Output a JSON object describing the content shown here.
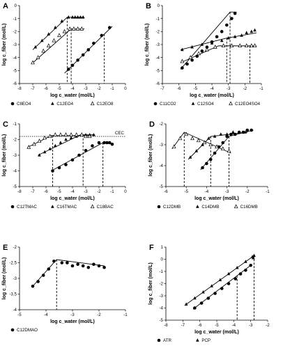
{
  "chart_data": [
    {
      "panel": "A",
      "type": "scatter",
      "xlabel": "log c_water (mol/L)",
      "ylabel": "log c_fiber (mol/L)",
      "xlim": [
        -8,
        0
      ],
      "ylim": [
        -6,
        0
      ],
      "xticks": [
        "-8",
        "-7",
        "-6",
        "-5",
        "-4",
        "-3",
        "-2",
        "-1",
        "0"
      ],
      "yticks": [
        "-6",
        "-5",
        "-4",
        "-3",
        "-2",
        "-1",
        "0"
      ],
      "series": [
        {
          "name": "C8EO4",
          "marker": "circle-filled",
          "x": [
            -4.3,
            -4.0,
            -3.6,
            -3.2,
            -2.8,
            -2.4,
            -1.8,
            -1.2
          ],
          "y": [
            -4.9,
            -4.6,
            -4.2,
            -3.8,
            -3.4,
            -2.9,
            -2.3,
            -1.7
          ],
          "fit_x": [
            -4.6,
            -1.0
          ],
          "fit_y": [
            -5.2,
            -1.6
          ],
          "vline": -1.6
        },
        {
          "name": "C12EO4",
          "marker": "triangle-filled",
          "x": [
            -6.8,
            -6.3,
            -5.8,
            -5.3,
            -4.8,
            -4.3,
            -4.0,
            -3.8,
            -3.6,
            -3.4,
            -3.2
          ],
          "y": [
            -3.2,
            -2.7,
            -2.2,
            -1.7,
            -1.2,
            -0.9,
            -0.9,
            -0.9,
            -0.9,
            -0.9,
            -0.9
          ],
          "fit_x": [
            -7.0,
            -4.4,
            -3.1
          ],
          "fit_y": [
            -3.4,
            -0.9,
            -0.9
          ],
          "vline": -4.4
        },
        {
          "name": "C12EO8",
          "marker": "triangle-open",
          "x": [
            -7.0,
            -6.6,
            -6.2,
            -5.8,
            -5.4,
            -5.0,
            -4.6,
            -4.2,
            -3.9,
            -3.6,
            -3.3
          ],
          "y": [
            -4.4,
            -4.0,
            -3.5,
            -3.1,
            -2.7,
            -2.3,
            -2.0,
            -1.8,
            -1.8,
            -1.8,
            -1.8
          ],
          "fit_x": [
            -7.1,
            -4.1,
            -3.1
          ],
          "fit_y": [
            -4.5,
            -1.8,
            -1.8
          ],
          "vline": -4.1
        }
      ],
      "legend": [
        "C8EO4",
        "C12EO4",
        "C12EO8"
      ]
    },
    {
      "panel": "B",
      "type": "scatter",
      "xlabel": "log c_water (mol/L)",
      "ylabel": "log c_fiber (mol/L)",
      "xlim": [
        -7,
        -1
      ],
      "ylim": [
        -6,
        0
      ],
      "xticks": [
        "-7",
        "-6",
        "-5",
        "-4",
        "-3",
        "-2",
        "-1"
      ],
      "yticks": [
        "-6",
        "-5",
        "-4",
        "-3",
        "-2",
        "-1",
        "0"
      ],
      "series": [
        {
          "name": "C11CO2",
          "marker": "circle-filled",
          "x": [
            -5.8,
            -5.5,
            -5.2,
            -4.9,
            -4.6,
            -4.3,
            -4.0,
            -3.7,
            -3.4,
            -3.1,
            -2.8,
            -2.6
          ],
          "y": [
            -4.8,
            -4.5,
            -4.2,
            -3.9,
            -3.5,
            -3.2,
            -2.8,
            -2.4,
            -2.0,
            -1.5,
            -1.0,
            -0.6
          ],
          "fit_x": [
            -5.9,
            -2.9,
            -2.5
          ],
          "fit_y": [
            -4.9,
            -0.5,
            -0.5
          ],
          "vline": -2.9
        },
        {
          "name": "C12SO4",
          "marker": "triangle-filled",
          "x": [
            -5.8,
            -5.2,
            -4.6,
            -4.0,
            -3.4,
            -3.0,
            -2.6,
            -2.2,
            -1.9,
            -1.6,
            -1.4
          ],
          "y": [
            -3.4,
            -3.2,
            -3.0,
            -2.9,
            -2.7,
            -2.5,
            -2.4,
            -2.3,
            -2.1,
            -2.0,
            -1.9
          ],
          "fit_x": [
            -5.9,
            -3.1,
            -1.3
          ],
          "fit_y": [
            -3.4,
            -2.5,
            -2.1
          ],
          "vline": -3.1
        },
        {
          "name": "C12EO4SO4",
          "marker": "triangle-open",
          "x": [
            -5.8,
            -5.3,
            -4.8,
            -4.3,
            -3.8,
            -3.3,
            -2.8,
            -2.3,
            -1.9,
            -1.6,
            -1.4
          ],
          "y": [
            -4.3,
            -4.0,
            -3.7,
            -3.4,
            -3.2,
            -3.1,
            -3.1,
            -3.1,
            -3.1,
            -3.1,
            -3.1
          ],
          "fit_x": [
            -5.9,
            -3.6,
            -1.3
          ],
          "fit_y": [
            -4.4,
            -3.1,
            -3.1
          ],
          "vline": -1.7
        }
      ],
      "legend": [
        "C11CO2",
        "C12SO4",
        "C12EO4SO4"
      ]
    },
    {
      "panel": "C",
      "type": "scatter",
      "xlabel": "log c_water (mol/L)",
      "ylabel": "log c_fiber (mol/L)",
      "xlim": [
        -8,
        0
      ],
      "ylim": [
        -5,
        -1
      ],
      "xticks": [
        "-8",
        "-7",
        "-6",
        "-5",
        "-4",
        "-3",
        "-2",
        "-1",
        "0"
      ],
      "yticks": [
        "-5",
        "-4",
        "-3",
        "-2",
        "-1"
      ],
      "annotation": "CEC",
      "cec": -1.8,
      "series": [
        {
          "name": "C12TMAC",
          "marker": "circle-filled",
          "x": [
            -5.5,
            -5.0,
            -4.5,
            -4.0,
            -3.5,
            -3.0,
            -2.5,
            -2.0,
            -1.6,
            -1.4,
            -1.2,
            -1.0
          ],
          "y": [
            -4.0,
            -3.8,
            -3.6,
            -3.3,
            -3.0,
            -2.7,
            -2.4,
            -2.2,
            -2.2,
            -2.2,
            -2.2,
            -2.3
          ],
          "fit_x": [
            -5.6,
            -1.7,
            -0.9
          ],
          "fit_y": [
            -4.0,
            -2.2,
            -2.3
          ],
          "vline": -1.7
        },
        {
          "name": "C16TMAC",
          "marker": "triangle-filled",
          "x": [
            -6.5,
            -6.1,
            -5.7,
            -5.3,
            -4.9,
            -4.5,
            -4.1,
            -3.7,
            -3.3,
            -3.0,
            -2.7,
            -2.4
          ],
          "y": [
            -3.0,
            -2.8,
            -2.6,
            -2.4,
            -2.2,
            -2.0,
            -1.9,
            -1.8,
            -1.7,
            -1.7,
            -1.7,
            -1.7
          ],
          "fit_x": [
            -6.6,
            -3.4,
            -2.3
          ],
          "fit_y": [
            -3.0,
            -1.7,
            -1.7
          ],
          "vline": -3.2
        },
        {
          "name": "C18BAC",
          "marker": "triangle-open",
          "x": [
            -7.3,
            -6.9,
            -6.5,
            -6.1,
            -5.7,
            -5.3,
            -4.9,
            -4.5,
            -4.1,
            -3.7,
            -3.3,
            -3.0,
            -2.7
          ],
          "y": [
            -2.5,
            -2.3,
            -2.1,
            -1.9,
            -1.8,
            -1.7,
            -1.7,
            -1.7,
            -1.7,
            -1.7,
            -1.7,
            -1.8,
            -1.8
          ],
          "fit_x": [
            -7.4,
            -5.6,
            -2.6
          ],
          "fit_y": [
            -2.5,
            -1.75,
            -1.75
          ],
          "vline": -5.5
        }
      ],
      "legend": [
        "C12TMAC",
        "C16TMAC",
        "C18BAC"
      ]
    },
    {
      "panel": "D",
      "type": "scatter",
      "xlabel": "log c_water (mol/L)",
      "ylabel": "log c_fiber (mol/L)",
      "xlim": [
        -6,
        -1
      ],
      "ylim": [
        -5,
        -2
      ],
      "xticks": [
        "-6",
        "-5",
        "-4",
        "-3",
        "-2",
        "-1"
      ],
      "yticks": [
        "-5",
        "-4",
        "-3",
        "-2"
      ],
      "series": [
        {
          "name": "C12DMB",
          "marker": "circle-filled",
          "x": [
            -4.2,
            -4.0,
            -3.8,
            -3.6,
            -3.4,
            -3.2,
            -3.0,
            -2.8,
            -2.6,
            -2.4,
            -2.2,
            -2.0,
            -1.8
          ],
          "y": [
            -4.1,
            -3.9,
            -3.7,
            -3.4,
            -3.1,
            -2.9,
            -2.6,
            -2.5,
            -2.5,
            -2.4,
            -2.4,
            -2.3,
            -2.3
          ],
          "fit_x": [
            -4.3,
            -2.9,
            -1.7
          ],
          "fit_y": [
            -4.2,
            -2.6,
            -2.3
          ],
          "vline": -2.9
        },
        {
          "name": "C14DMB",
          "marker": "triangle-filled",
          "x": [
            -4.8,
            -4.5,
            -4.2,
            -3.9,
            -3.6,
            -3.3,
            -3.0,
            -2.7,
            -2.4,
            -2.1
          ],
          "y": [
            -3.6,
            -3.3,
            -3.0,
            -2.7,
            -2.6,
            -2.5,
            -2.5,
            -2.4,
            -2.4,
            -2.4
          ],
          "fit_x": [
            -4.9,
            -3.8,
            -2.0
          ],
          "fit_y": [
            -3.7,
            -2.6,
            -2.4
          ],
          "vline": -3.8
        },
        {
          "name": "C16DMB",
          "marker": "triangle-open",
          "x": [
            -5.6,
            -5.3,
            -5.0,
            -4.7,
            -4.4,
            -4.1,
            -3.8,
            -3.5,
            -3.2,
            -2.9
          ],
          "y": [
            -3.1,
            -2.7,
            -2.5,
            -2.7,
            -2.8,
            -2.9,
            -3.0,
            -3.1,
            -3.2,
            -3.3
          ],
          "fit_x": [
            -5.7,
            -5.1,
            -2.8
          ],
          "fit_y": [
            -3.2,
            -2.4,
            -3.4
          ],
          "vline": -5.1
        }
      ],
      "legend": [
        "C12DMB",
        "C14DMB",
        "C16DMB"
      ]
    },
    {
      "panel": "E",
      "type": "scatter",
      "xlabel": "log c_water (mol/L)",
      "ylabel": "log c_fiber (mol/L)",
      "xlim": [
        -5,
        -1
      ],
      "ylim": [
        -4,
        -2
      ],
      "xticks": [
        "-5",
        "-4",
        "-3",
        "-2",
        "-1"
      ],
      "yticks": [
        "-4",
        "-3.5",
        "-3",
        "-2.5",
        "-2"
      ],
      "series": [
        {
          "name": "C12DMAO",
          "marker": "circle-filled",
          "x": [
            -4.5,
            -4.3,
            -4.1,
            -3.9,
            -3.7,
            -3.4,
            -3.2,
            -3.0,
            -2.8,
            -2.6,
            -2.4,
            -2.2,
            -2.0,
            -1.8
          ],
          "y": [
            -3.25,
            -3.1,
            -2.9,
            -2.7,
            -2.45,
            -2.5,
            -2.5,
            -2.6,
            -2.55,
            -2.6,
            -2.65,
            -2.55,
            -2.6,
            -2.65
          ],
          "fit_x": [
            -4.5,
            -3.6,
            -1.8
          ],
          "fit_y": [
            -3.25,
            -2.4,
            -2.6
          ],
          "vline": -3.6
        }
      ],
      "legend": [
        "C12DMAO"
      ]
    },
    {
      "panel": "F",
      "type": "scatter",
      "xlabel": "log c_water (mol/L)",
      "ylabel": "log c_fiber (mol/L)",
      "xlim": [
        -8,
        -2
      ],
      "ylim": [
        -5,
        1
      ],
      "xticks": [
        "-8",
        "-7",
        "-6",
        "-5",
        "-4",
        "-3",
        "-2"
      ],
      "yticks": [
        "-5",
        "-4",
        "-3",
        "-2",
        "-1",
        "0",
        "1"
      ],
      "series": [
        {
          "name": "ATR",
          "marker": "circle-filled",
          "x": [
            -6.3,
            -5.9,
            -5.5,
            -5.1,
            -4.7,
            -4.3,
            -3.9,
            -3.6,
            -3.3,
            -3.0
          ],
          "y": [
            -4.0,
            -3.6,
            -3.2,
            -2.8,
            -2.4,
            -2.0,
            -1.6,
            -1.2,
            -0.9,
            -0.5
          ],
          "fit_x": [
            -6.4,
            -3.0
          ],
          "fit_y": [
            -4.1,
            -0.5
          ],
          "vline": -3.8
        },
        {
          "name": "PCP",
          "marker": "triangle-filled",
          "x": [
            -6.8,
            -6.3,
            -5.8,
            -5.3,
            -4.8,
            -4.3,
            -3.8,
            -3.3,
            -2.9,
            -2.85,
            -2.8
          ],
          "y": [
            -3.7,
            -3.2,
            -2.7,
            -2.2,
            -1.7,
            -1.2,
            -0.7,
            -0.2,
            0.2,
            0.1,
            0.3
          ],
          "fit_x": [
            -6.9,
            -2.8
          ],
          "fit_y": [
            -3.8,
            0.3
          ],
          "vline": -2.8
        }
      ],
      "legend": [
        "ATR",
        "PCP"
      ]
    }
  ]
}
